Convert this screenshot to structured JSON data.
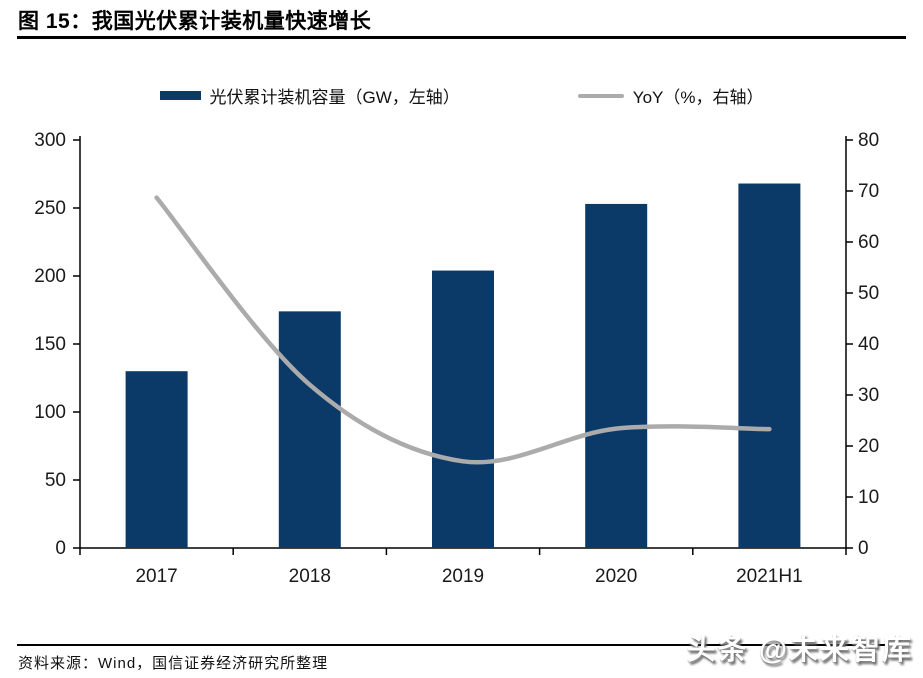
{
  "header": {
    "title": "图 15：我国光伏累计装机量快速增长"
  },
  "footer": {
    "source": "资料来源：Wind，国信证券经济研究所整理",
    "watermark": "头条 @未来智库"
  },
  "colors": {
    "bar": "#0b3a68",
    "line": "#ababab",
    "axis": "#000000",
    "tick_text": "#1a1a1a"
  },
  "chart_data": {
    "type": "bar",
    "subtype": "combo-bar-line",
    "title": "我国光伏累计装机量快速增长",
    "categories": [
      "2017",
      "2018",
      "2019",
      "2020",
      "2021H1"
    ],
    "series": [
      {
        "name": "光伏累计装机容量（GW，左轴）",
        "type": "bar",
        "axis": "left",
        "color": "#0b3a68",
        "values": [
          130,
          174,
          204,
          253,
          268
        ]
      },
      {
        "name": "YoY（%，右轴）",
        "type": "line",
        "axis": "right",
        "color": "#ababab",
        "values": [
          68.7,
          32,
          17,
          23.4,
          23.3
        ]
      }
    ],
    "left_axis": {
      "min": 0,
      "max": 300,
      "step": 50,
      "ticks": [
        0,
        50,
        100,
        150,
        200,
        250,
        300
      ]
    },
    "right_axis": {
      "min": 0,
      "max": 80,
      "step": 10,
      "ticks": [
        0,
        10,
        20,
        30,
        40,
        50,
        60,
        70,
        80
      ]
    },
    "grid": false,
    "legend_position": "top"
  }
}
